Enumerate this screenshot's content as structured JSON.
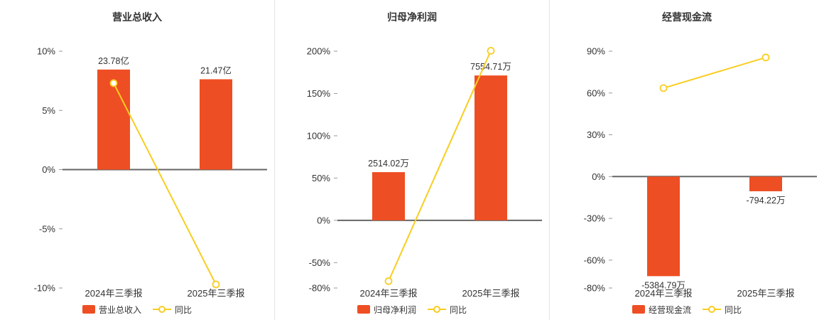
{
  "style": {
    "bar_color": "#ee4e23",
    "line_color": "#f9cd20",
    "axis_color": "#666666",
    "tick_color": "#999999",
    "text_color": "#333333",
    "divider_color": "#e4e4e4",
    "background": "#ffffff"
  },
  "chart_data": [
    {
      "type": "bar",
      "title": "营业总收入",
      "categories": [
        "2024年三季报",
        "2025年三季报"
      ],
      "bar_series": {
        "name": "营业总收入",
        "labels": [
          "23.78亿",
          "21.47亿"
        ],
        "values": [
          23.78,
          21.47
        ],
        "unit": "亿",
        "heights_on_axis": [
          8.45,
          7.63
        ]
      },
      "line_series": {
        "name": "同比",
        "values": [
          7.3,
          -9.7
        ]
      },
      "yticks": [
        "10%",
        "5%",
        "0%",
        "-5%",
        "-10%"
      ],
      "ytick_values": [
        10,
        5,
        0,
        -5,
        -10
      ],
      "ymin": -10,
      "ymax": 10,
      "grid": false,
      "legend_position": "bottom"
    },
    {
      "type": "bar",
      "title": "归母净利润",
      "categories": [
        "2024年三季报",
        "2025年三季报"
      ],
      "bar_series": {
        "name": "归母净利润",
        "labels": [
          "2514.02万",
          "7554.71万"
        ],
        "values": [
          2514.02,
          7554.71
        ],
        "unit": "万",
        "heights_on_axis": [
          57,
          171.3
        ]
      },
      "line_series": {
        "name": "同比",
        "values": [
          -71.9,
          200.5
        ]
      },
      "yticks": [
        "200%",
        "150%",
        "100%",
        "50%",
        "0%",
        "-50%",
        "-80%"
      ],
      "ytick_values": [
        200,
        150,
        100,
        50,
        0,
        -50,
        -80
      ],
      "ymin": -80,
      "ymax": 200,
      "grid": false,
      "legend_position": "bottom"
    },
    {
      "type": "bar",
      "title": "经营现金流",
      "categories": [
        "2024年三季报",
        "2025年三季报"
      ],
      "bar_series": {
        "name": "经营现金流",
        "labels": [
          "-5384.79万",
          "-794.22万"
        ],
        "values": [
          -5384.79,
          -794.22
        ],
        "unit": "万",
        "heights_on_axis": [
          -71.5,
          -10.55
        ]
      },
      "line_series": {
        "name": "同比",
        "values": [
          63.5,
          85.5
        ]
      },
      "yticks": [
        "90%",
        "60%",
        "30%",
        "0%",
        "-30%",
        "-60%",
        "-80%"
      ],
      "ytick_values": [
        90,
        60,
        30,
        0,
        -30,
        -60,
        -80
      ],
      "ymin": -80,
      "ymax": 90,
      "grid": false,
      "legend_position": "bottom"
    }
  ]
}
